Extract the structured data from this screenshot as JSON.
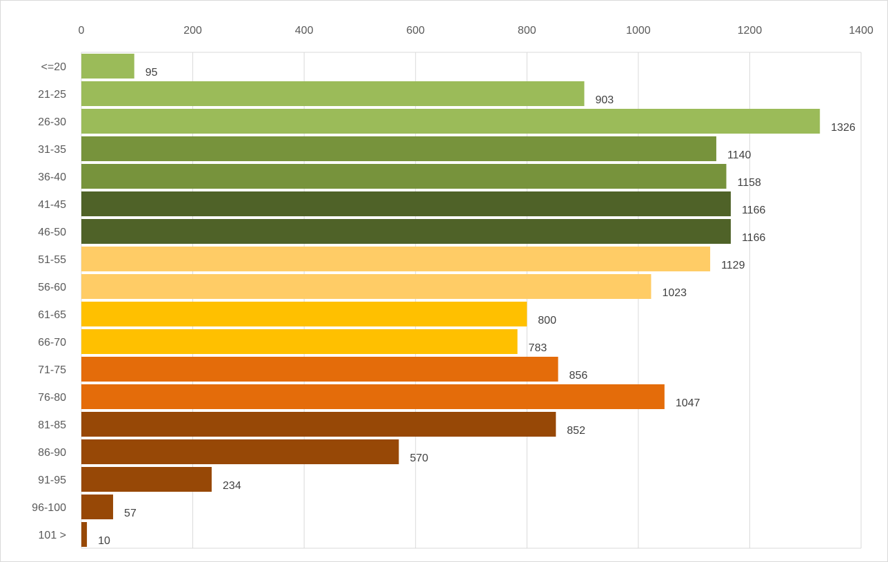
{
  "chart_data": {
    "type": "bar",
    "orientation": "horizontal",
    "title": "",
    "xlabel": "",
    "ylabel": "",
    "xlim": [
      0,
      1400
    ],
    "x_ticks": [
      0,
      200,
      400,
      600,
      800,
      1000,
      1200,
      1400
    ],
    "x_axis_position": "top",
    "grid": true,
    "legend": "none",
    "categories": [
      "<=20",
      "21-25",
      "26-30",
      "31-35",
      "36-40",
      "41-45",
      "46-50",
      "51-55",
      "56-60",
      "61-65",
      "66-70",
      "71-75",
      "76-80",
      "81-85",
      "86-90",
      "91-95",
      "96-100",
      "101 >"
    ],
    "values": [
      95,
      903,
      1326,
      1140,
      1158,
      1166,
      1166,
      1129,
      1023,
      800,
      783,
      856,
      1047,
      852,
      570,
      234,
      57,
      10
    ],
    "bar_colors": [
      "#9bbb59",
      "#9bbb59",
      "#9bbb59",
      "#77933c",
      "#77933c",
      "#4f6228",
      "#4f6228",
      "#ffcc66",
      "#ffcc66",
      "#ffc000",
      "#ffc000",
      "#e46c0a",
      "#e46c0a",
      "#974806",
      "#974806",
      "#974806",
      "#974806",
      "#974806"
    ]
  },
  "colors": {
    "grid": "#d9d9d9",
    "text": "#595959"
  }
}
